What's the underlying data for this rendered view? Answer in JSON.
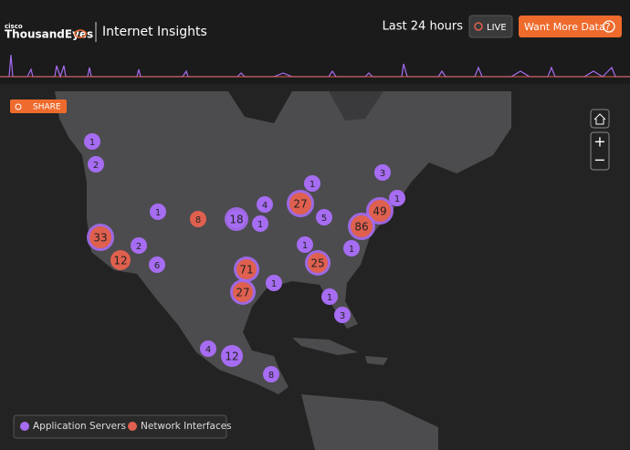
{
  "header": {
    "brand_small": "cisco",
    "brand": "ThousandEyes",
    "title": "Internet Insights",
    "time_range": "Last 24 hours",
    "live": "LIVE",
    "cta": "Want More Data?"
  },
  "share": "SHARE",
  "zoom": {
    "in": "+",
    "out": "−"
  },
  "legend": [
    {
      "name": "Application Servers",
      "color": "#a66cf2"
    },
    {
      "name": "Network Interfaces",
      "color": "#e0604f"
    }
  ],
  "clusters": [
    {
      "count": 1,
      "group": 0
    },
    {
      "count": 2,
      "group": 0
    },
    {
      "count": 3,
      "group": 0
    },
    {
      "count": 1,
      "group": 0
    },
    {
      "count": 27,
      "group": 1
    },
    {
      "count": 4,
      "group": 0
    },
    {
      "count": 1,
      "group": 0
    },
    {
      "count": 8,
      "group": 1
    },
    {
      "count": 18,
      "group": 0
    },
    {
      "count": 1,
      "group": 0
    },
    {
      "count": 5,
      "group": 0
    },
    {
      "count": 1,
      "group": 0
    },
    {
      "count": 49,
      "group": 1
    },
    {
      "count": 86,
      "group": 1
    },
    {
      "count": 33,
      "group": 1
    },
    {
      "count": 2,
      "group": 0
    },
    {
      "count": 1,
      "group": 0
    },
    {
      "count": 1,
      "group": 0
    },
    {
      "count": 12,
      "group": 1
    },
    {
      "count": 6,
      "group": 0
    },
    {
      "count": 25,
      "group": 1
    },
    {
      "count": 71,
      "group": 1
    },
    {
      "count": 27,
      "group": 1
    },
    {
      "count": 1,
      "group": 0
    },
    {
      "count": 1,
      "group": 0
    },
    {
      "count": 3,
      "group": 0
    },
    {
      "count": 4,
      "group": 0
    },
    {
      "count": 12,
      "group": 0
    },
    {
      "count": 8,
      "group": 0
    }
  ]
}
